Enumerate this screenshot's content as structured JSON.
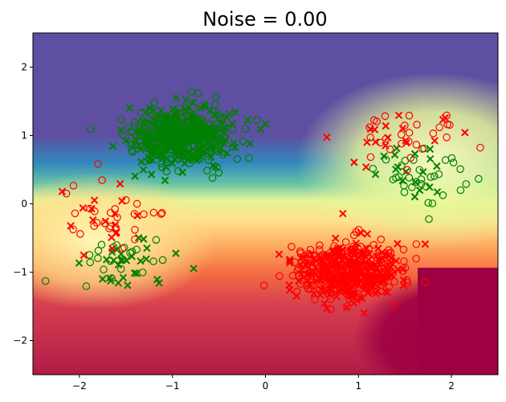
{
  "chart_data": {
    "type": "scatter",
    "title": "Noise = 0.00",
    "xlabel": "",
    "ylabel": "",
    "xlim": [
      -2.5,
      2.5
    ],
    "ylim": [
      -2.5,
      2.5
    ],
    "xticks": [
      -2,
      -1,
      0,
      1,
      2
    ],
    "yticks": [
      -2,
      -1,
      0,
      1,
      2
    ],
    "xtick_labels": [
      "−2",
      "−1",
      "0",
      "1",
      "2"
    ],
    "ytick_labels": [
      "−2",
      "−1",
      "0",
      "1",
      "2"
    ],
    "grid": false,
    "background": "decision-boundary contour, Spectral colormap (purple/blue top-left, yellow middle band, red/crimson bottom)",
    "colors": {
      "green": "#008000",
      "red": "#ff0000"
    },
    "markers": {
      "circle": "open circle (o)",
      "cross": "x"
    },
    "clusters": [
      {
        "center": [
          -0.9,
          1.0
        ],
        "spread": [
          0.28,
          0.22
        ],
        "count": 500,
        "color": "green",
        "comment": "dense upper-left cluster, mixed o and x"
      },
      {
        "center": [
          0.9,
          -1.0
        ],
        "spread": [
          0.28,
          0.22
        ],
        "count": 500,
        "color": "red",
        "comment": "dense lower-right cluster, mixed o and x"
      },
      {
        "center": [
          -1.5,
          -0.8
        ],
        "spread": [
          0.25,
          0.2
        ],
        "count": 50,
        "color": "green",
        "comment": "sparse lower-left green group"
      },
      {
        "center": [
          -1.7,
          -0.2
        ],
        "spread": [
          0.3,
          0.25
        ],
        "count": 45,
        "color": "red",
        "comment": "sparse lower-left red group"
      },
      {
        "center": [
          1.6,
          0.45
        ],
        "spread": [
          0.28,
          0.22
        ],
        "count": 50,
        "color": "green",
        "comment": "sparse upper-right green group"
      },
      {
        "center": [
          1.5,
          1.0
        ],
        "spread": [
          0.3,
          0.22
        ],
        "count": 45,
        "color": "red",
        "comment": "sparse upper-right red group"
      }
    ]
  }
}
